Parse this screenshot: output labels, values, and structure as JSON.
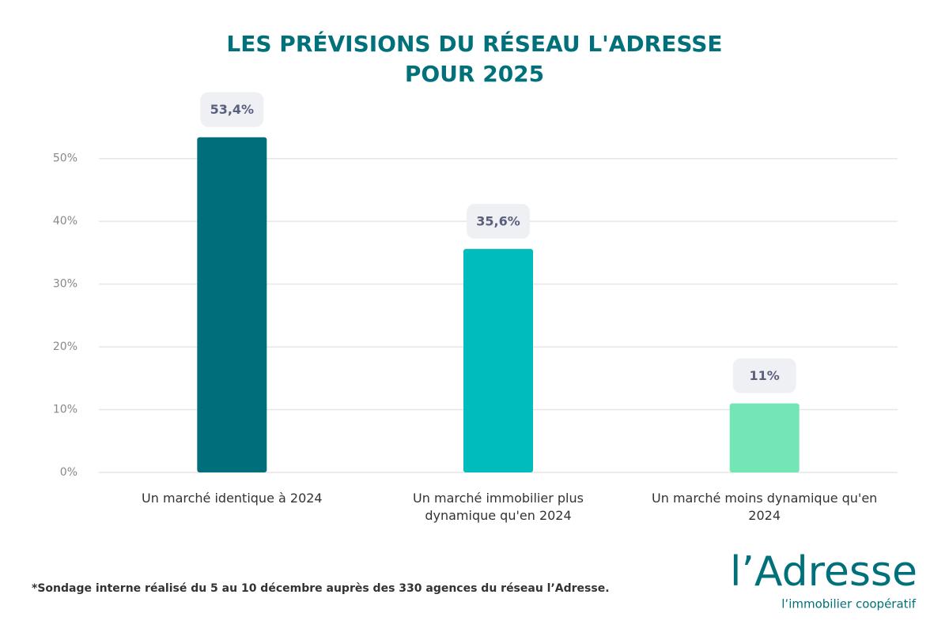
{
  "chart_data": {
    "type": "bar",
    "title": [
      "LES PRÉVISIONS DU RÉSEAU L'ADRESSE",
      "POUR 2025"
    ],
    "categories": [
      "Un marché identique à 2024",
      "Un marché immobilier plus dynamique qu'en 2024",
      "Un marché moins dynamique qu'en 2024"
    ],
    "values": [
      53.4,
      35.6,
      11
    ],
    "value_labels": [
      "53,4%",
      "35,6%",
      "11%"
    ],
    "colors": [
      "#006f7b",
      "#00bcbc",
      "#74e6b5"
    ],
    "ylim": [
      0,
      55
    ],
    "yticks": [
      {
        "value": 0,
        "label": "0%"
      },
      {
        "value": 10,
        "label": "10%"
      },
      {
        "value": 20,
        "label": "20%"
      },
      {
        "value": 30,
        "label": "30%"
      },
      {
        "value": 40,
        "label": "40%"
      },
      {
        "value": 50,
        "label": "50%"
      }
    ],
    "grid": true,
    "footnote": "*Sondage interne réalisé du 5 au 10 décembre auprès des 330 agences du réseau l’Adresse.",
    "logo": {
      "name": "l’Adresse",
      "tagline": "l’immobilier coopératif"
    }
  }
}
